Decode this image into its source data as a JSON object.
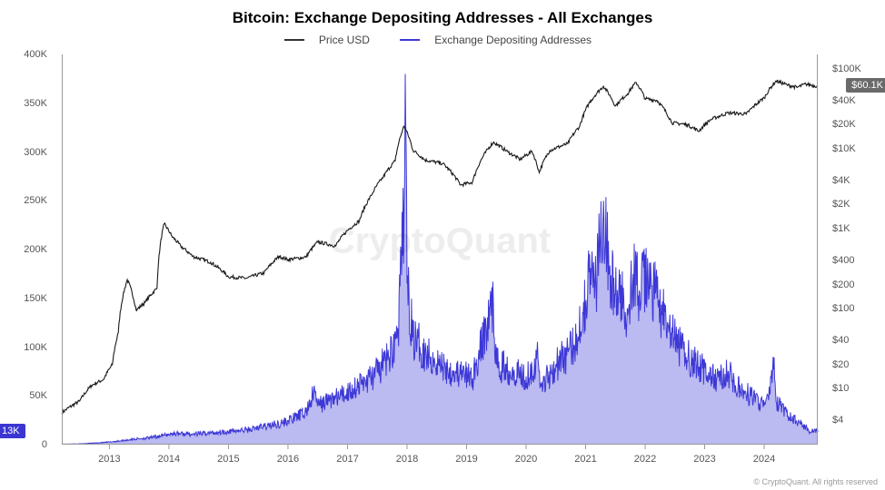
{
  "title": "Bitcoin: Exchange Depositing Addresses - All Exchanges",
  "legend": {
    "price": {
      "label": "Price USD",
      "color": "#333333"
    },
    "addresses": {
      "label": "Exchange Depositing Addresses",
      "color": "#3d38d6"
    }
  },
  "watermark": "CryptoQuant",
  "copyright": "© CryptoQuant. All rights reserved",
  "chart": {
    "type": "dual-axis-line",
    "background_color": "#ffffff",
    "x_axis": {
      "ticks": [
        "2013",
        "2014",
        "2015",
        "2016",
        "2017",
        "2018",
        "2019",
        "2020",
        "2021",
        "2022",
        "2023",
        "2024"
      ],
      "range": [
        2012.2,
        2024.9
      ],
      "fontsize": 11,
      "color": "#555555"
    },
    "y_axis_left": {
      "label": "",
      "ticks": [
        "0",
        "50K",
        "100K",
        "150K",
        "200K",
        "250K",
        "300K",
        "350K",
        "400K"
      ],
      "range": [
        0,
        400000
      ],
      "scale": "linear",
      "fontsize": 11,
      "color": "#555555",
      "marker": {
        "value": "13K",
        "position": 13000,
        "bg": "#3b36d1",
        "text": "#ffffff"
      }
    },
    "y_axis_right": {
      "label": "",
      "ticks": [
        "$4",
        "$10",
        "$20",
        "$40",
        "$100",
        "$200",
        "$400",
        "$1K",
        "$2K",
        "$4K",
        "$10K",
        "$20K",
        "$40K",
        "$100K"
      ],
      "tick_values": [
        4,
        10,
        20,
        40,
        100,
        200,
        400,
        1000,
        2000,
        4000,
        10000,
        20000,
        40000,
        100000
      ],
      "range": [
        2,
        150000
      ],
      "scale": "log",
      "fontsize": 11,
      "color": "#555555",
      "marker": {
        "value": "$60.1K",
        "position": 60100,
        "bg": "#6a6a6a",
        "text": "#ffffff"
      }
    },
    "series": {
      "addresses": {
        "axis": "left",
        "color": "#3d38d6",
        "line_width": 1.0,
        "fill_opacity": 0.35,
        "data": [
          [
            2012.2,
            500
          ],
          [
            2012.5,
            800
          ],
          [
            2012.8,
            1800
          ],
          [
            2013.0,
            2600
          ],
          [
            2013.2,
            4000
          ],
          [
            2013.4,
            5500
          ],
          [
            2013.7,
            7200
          ],
          [
            2013.9,
            9500
          ],
          [
            2014.1,
            11500
          ],
          [
            2014.4,
            10500
          ],
          [
            2014.7,
            12000
          ],
          [
            2015.0,
            13500
          ],
          [
            2015.3,
            15000
          ],
          [
            2015.6,
            18500
          ],
          [
            2015.9,
            22000
          ],
          [
            2016.1,
            27000
          ],
          [
            2016.3,
            33000
          ],
          [
            2016.45,
            55000
          ],
          [
            2016.5,
            40000
          ],
          [
            2016.7,
            46000
          ],
          [
            2016.9,
            50000
          ],
          [
            2017.1,
            58000
          ],
          [
            2017.3,
            65000
          ],
          [
            2017.5,
            74000
          ],
          [
            2017.7,
            90000
          ],
          [
            2017.85,
            115000
          ],
          [
            2017.95,
            240000
          ],
          [
            2017.97,
            380000
          ],
          [
            2018.0,
            165000
          ],
          [
            2018.1,
            110000
          ],
          [
            2018.3,
            95000
          ],
          [
            2018.6,
            80000
          ],
          [
            2018.9,
            72000
          ],
          [
            2019.1,
            68000
          ],
          [
            2019.45,
            145000
          ],
          [
            2019.5,
            82000
          ],
          [
            2019.8,
            76000
          ],
          [
            2020.0,
            70000
          ],
          [
            2020.2,
            88000
          ],
          [
            2020.25,
            60000
          ],
          [
            2020.5,
            82000
          ],
          [
            2020.8,
            100000
          ],
          [
            2020.95,
            135000
          ],
          [
            2021.1,
            185000
          ],
          [
            2021.15,
            150000
          ],
          [
            2021.3,
            250000
          ],
          [
            2021.4,
            175000
          ],
          [
            2021.5,
            155000
          ],
          [
            2021.7,
            140000
          ],
          [
            2021.8,
            175000
          ],
          [
            2021.9,
            158000
          ],
          [
            2022.05,
            170000
          ],
          [
            2022.2,
            150000
          ],
          [
            2022.4,
            115000
          ],
          [
            2022.6,
            98000
          ],
          [
            2022.9,
            80000
          ],
          [
            2023.2,
            66000
          ],
          [
            2023.45,
            75000
          ],
          [
            2023.5,
            60000
          ],
          [
            2023.8,
            49000
          ],
          [
            2024.0,
            40000
          ],
          [
            2024.1,
            52000
          ],
          [
            2024.15,
            90000
          ],
          [
            2024.2,
            44000
          ],
          [
            2024.4,
            30000
          ],
          [
            2024.6,
            22000
          ],
          [
            2024.8,
            13000
          ],
          [
            2024.85,
            16000
          ],
          [
            2024.9,
            13000
          ]
        ]
      },
      "price": {
        "axis": "right",
        "color": "#1a1a1a",
        "line_width": 1.1,
        "data": [
          [
            2012.2,
            5
          ],
          [
            2012.5,
            7
          ],
          [
            2012.7,
            11
          ],
          [
            2012.9,
            13
          ],
          [
            2013.05,
            20
          ],
          [
            2013.15,
            50
          ],
          [
            2013.3,
            230
          ],
          [
            2013.45,
            95
          ],
          [
            2013.6,
            120
          ],
          [
            2013.8,
            180
          ],
          [
            2013.92,
            1150
          ],
          [
            2014.05,
            800
          ],
          [
            2014.2,
            600
          ],
          [
            2014.4,
            450
          ],
          [
            2014.7,
            380
          ],
          [
            2015.0,
            250
          ],
          [
            2015.3,
            240
          ],
          [
            2015.6,
            280
          ],
          [
            2015.85,
            450
          ],
          [
            2016.0,
            410
          ],
          [
            2016.3,
            440
          ],
          [
            2016.5,
            680
          ],
          [
            2016.8,
            610
          ],
          [
            2017.0,
            950
          ],
          [
            2017.2,
            1250
          ],
          [
            2017.4,
            2600
          ],
          [
            2017.6,
            4400
          ],
          [
            2017.8,
            7000
          ],
          [
            2017.95,
            19000
          ],
          [
            2018.1,
            9500
          ],
          [
            2018.3,
            7200
          ],
          [
            2018.6,
            6500
          ],
          [
            2018.9,
            3500
          ],
          [
            2019.1,
            3800
          ],
          [
            2019.45,
            12000
          ],
          [
            2019.7,
            9000
          ],
          [
            2019.9,
            7300
          ],
          [
            2020.1,
            9200
          ],
          [
            2020.22,
            5000
          ],
          [
            2020.4,
            9500
          ],
          [
            2020.7,
            11500
          ],
          [
            2020.9,
            19000
          ],
          [
            2021.05,
            36000
          ],
          [
            2021.3,
            60000
          ],
          [
            2021.5,
            34000
          ],
          [
            2021.7,
            48000
          ],
          [
            2021.85,
            67000
          ],
          [
            2022.0,
            42000
          ],
          [
            2022.2,
            40000
          ],
          [
            2022.45,
            21000
          ],
          [
            2022.7,
            20000
          ],
          [
            2022.9,
            16500
          ],
          [
            2023.1,
            23000
          ],
          [
            2023.4,
            28000
          ],
          [
            2023.7,
            27000
          ],
          [
            2023.85,
            35000
          ],
          [
            2024.0,
            43000
          ],
          [
            2024.2,
            70000
          ],
          [
            2024.4,
            62000
          ],
          [
            2024.55,
            58000
          ],
          [
            2024.7,
            64000
          ],
          [
            2024.9,
            60100
          ]
        ]
      }
    }
  }
}
